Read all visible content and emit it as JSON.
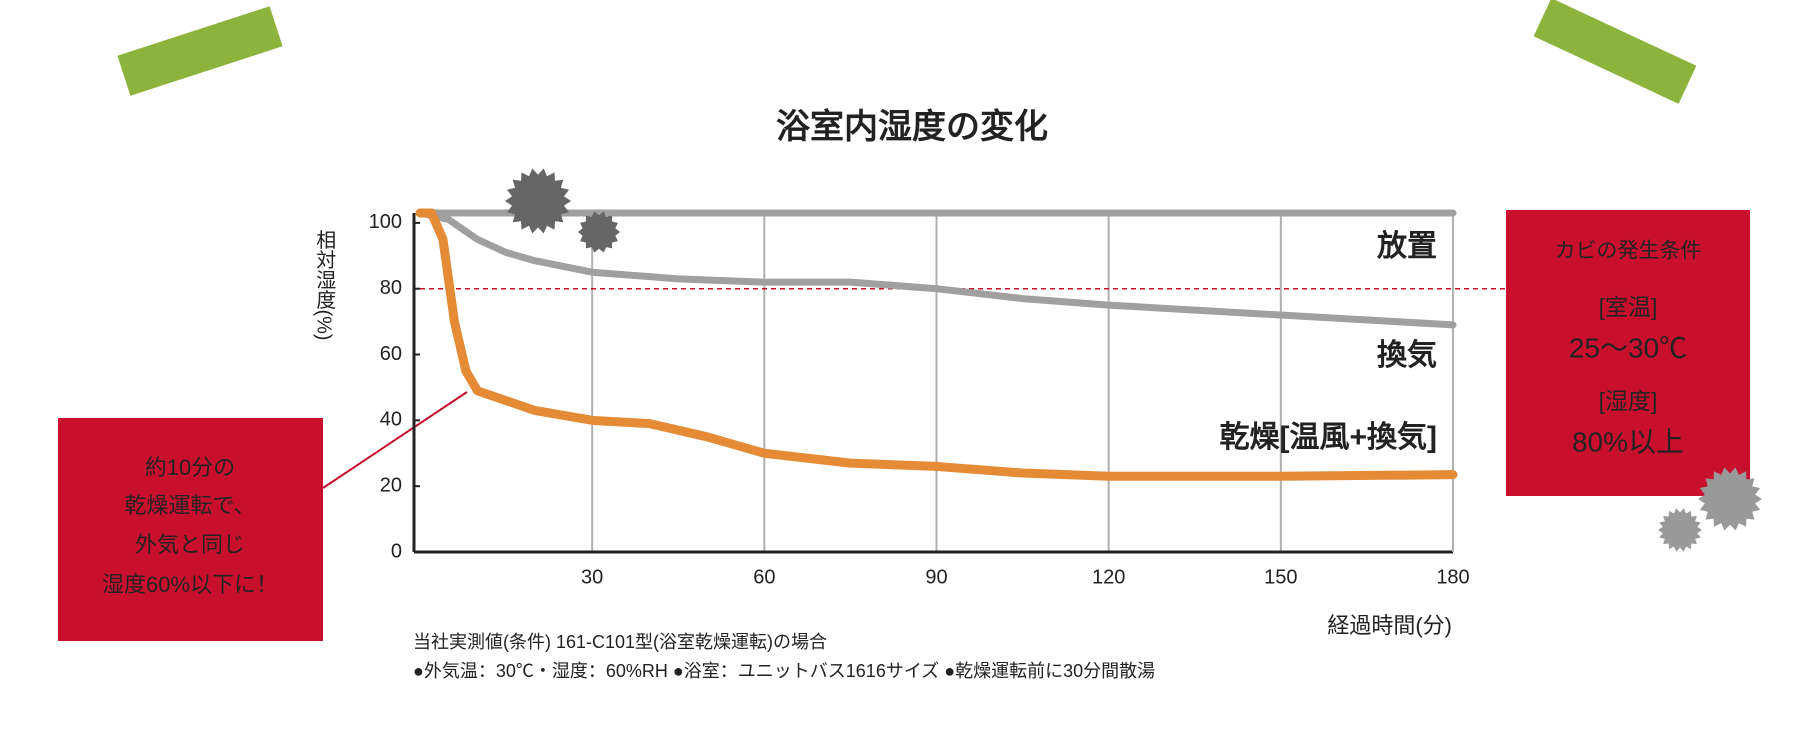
{
  "chart_data": {
    "type": "line",
    "title": "浴室内湿度の変化",
    "y_label": "相対湿度(%)",
    "x_label": "経過時間(分)",
    "xlim": [
      0,
      180
    ],
    "ylim": [
      0,
      103
    ],
    "xticks": [
      30,
      60,
      90,
      120,
      150,
      180
    ],
    "yticks": [
      0,
      20,
      40,
      60,
      80,
      100
    ],
    "grid": true,
    "series": [
      {
        "name": "放置",
        "color": "#a0a0a0",
        "x": [
          0,
          180
        ],
        "values": [
          103,
          103
        ]
      },
      {
        "name": "換気",
        "color": "#a0a0a0",
        "x": [
          0,
          5,
          10,
          15,
          20,
          30,
          45,
          60,
          75,
          90,
          105,
          120,
          150,
          180
        ],
        "values": [
          103,
          101,
          95,
          91,
          88.5,
          85,
          83,
          82,
          82,
          80,
          77,
          75,
          72,
          69
        ]
      },
      {
        "name": "乾燥[温風+換気]",
        "color": "#e58a35",
        "x": [
          0,
          2,
          4,
          6,
          8,
          10,
          15,
          20,
          30,
          40,
          50,
          60,
          75,
          90,
          105,
          120,
          150,
          180
        ],
        "values": [
          103,
          103,
          95,
          70,
          55,
          49,
          46,
          43,
          40,
          39,
          35,
          30,
          27,
          26,
          24,
          23,
          23,
          23.5
        ]
      }
    ],
    "threshold": {
      "value": 80,
      "color": "#c8102e"
    },
    "notes": [
      "当社実測値(条件) 161-C101型(浴室乾燥運転)の場合",
      "●外気温：30℃・湿度：60%RH ●浴室：ユニットバス1616サイズ ●乾燥運転前に30分間散湯"
    ],
    "annotations": [
      {
        "lines": [
          "約10分の",
          "乾燥運転で、",
          "外気と同じ",
          "湿度60%以下に！"
        ]
      },
      {
        "lines": [
          "カビの発生条件",
          "[室温]",
          "25～30℃",
          "[湿度]",
          "80%以上"
        ]
      }
    ]
  }
}
